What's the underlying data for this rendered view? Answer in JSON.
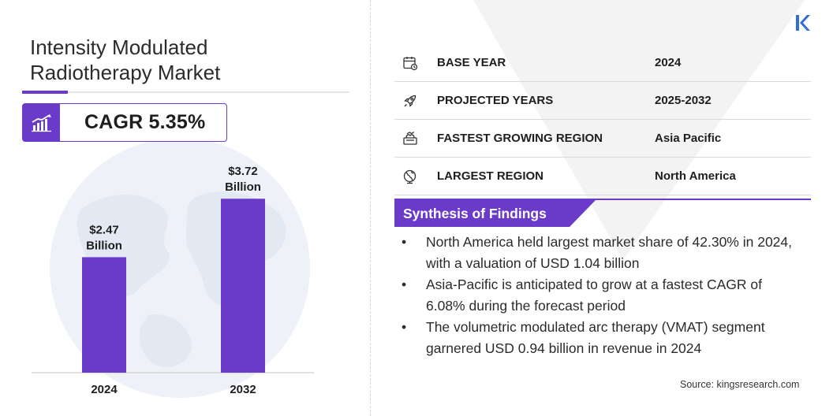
{
  "title": "Intensity Modulated Radiotherapy Market",
  "cagr": "CAGR 5.35%",
  "chart_data": {
    "type": "bar",
    "categories": [
      "2024",
      "2032"
    ],
    "values": [
      2.47,
      3.72
    ],
    "value_labels": [
      [
        "$2.47",
        "Billion"
      ],
      [
        "$3.72",
        "Billion"
      ]
    ],
    "unit": "USD Billion",
    "ylim": [
      0,
      4.6
    ],
    "bar_color": "#6a3bc9",
    "grid": false,
    "legend": "none"
  },
  "table": [
    {
      "icon": "calendar-icon",
      "label": "BASE YEAR",
      "value": "2024"
    },
    {
      "icon": "rocket-icon",
      "label": "PROJECTED YEARS",
      "value": "2025-2032"
    },
    {
      "icon": "growth-region-icon",
      "label": "FASTEST GROWING REGION",
      "value": "Asia Pacific"
    },
    {
      "icon": "globe-icon",
      "label": "LARGEST REGION",
      "value": "North America"
    }
  ],
  "synthesis": {
    "heading": "Synthesis of Findings",
    "bullet": "•",
    "items": [
      "North America held largest market share of 42.30% in 2024, with a valuation of USD 1.04 billion",
      "Asia-Pacific is anticipated to grow at a fastest CAGR of 6.08% during the forecast period",
      "The volumetric modulated arc therapy (VMAT) segment garnered USD 0.94 billion in revenue in 2024"
    ]
  },
  "source": "Source:  kingsresearch.com",
  "colors": {
    "accent": "#6a3bc9",
    "text": "#1e1e1e",
    "rule": "#d9d9d9"
  }
}
